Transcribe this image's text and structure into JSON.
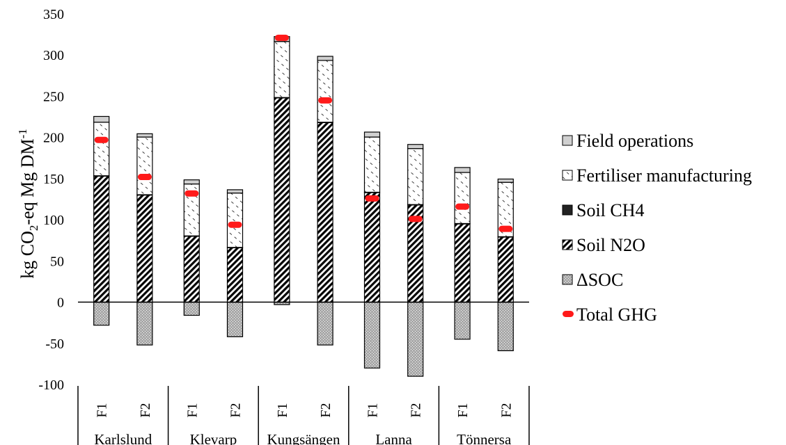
{
  "chart_data": {
    "type": "bar",
    "stacked": true,
    "ylabel_main": "kg CO",
    "ylabel_sub": "2",
    "ylabel_mid": "-eq Mg DM",
    "ylabel_sup": "-1",
    "ylim": [
      -100,
      350
    ],
    "yticks": [
      -100,
      -50,
      0,
      50,
      100,
      150,
      200,
      250,
      300,
      350
    ],
    "groups": [
      {
        "name": "Karlslund",
        "categories": [
          "F1",
          "F2"
        ]
      },
      {
        "name": "Klevarp",
        "categories": [
          "F1",
          "F2"
        ]
      },
      {
        "name": "Kungsängen",
        "categories": [
          "F1",
          "F2"
        ]
      },
      {
        "name": "Lanna",
        "categories": [
          "F1",
          "F2"
        ]
      },
      {
        "name": "Tönnersa",
        "categories": [
          "F1",
          "F2"
        ]
      }
    ],
    "series": [
      {
        "name": "ΔSOC",
        "values": [
          -28,
          -52,
          -16,
          -42,
          -3,
          -52,
          -80,
          -90,
          -45,
          -59
        ]
      },
      {
        "name": "Soil N2O",
        "values": [
          153,
          130,
          80,
          66,
          248,
          218,
          133,
          118,
          95,
          79
        ]
      },
      {
        "name": "Soil CH4",
        "values": [
          0.5,
          0.5,
          0.5,
          0.5,
          0.5,
          0.5,
          0.5,
          0.5,
          0.5,
          0.5
        ]
      },
      {
        "name": "Fertiliser manufacturing",
        "values": [
          65,
          70,
          63,
          66,
          68,
          75,
          67,
          68,
          62,
          66
        ]
      },
      {
        "name": "Field operations",
        "values": [
          7,
          4,
          5,
          4,
          6,
          5,
          6,
          5,
          6,
          4
        ]
      }
    ],
    "total_ghg": {
      "name": "Total GHG",
      "values": [
        197,
        152,
        132,
        94,
        321,
        245,
        126,
        101,
        116,
        89
      ]
    },
    "legend": [
      "Field operations",
      "Fertiliser manufacturing",
      "Soil CH4",
      "Soil N2O",
      "ΔSOC",
      "Total GHG"
    ],
    "legend_position": "right"
  }
}
